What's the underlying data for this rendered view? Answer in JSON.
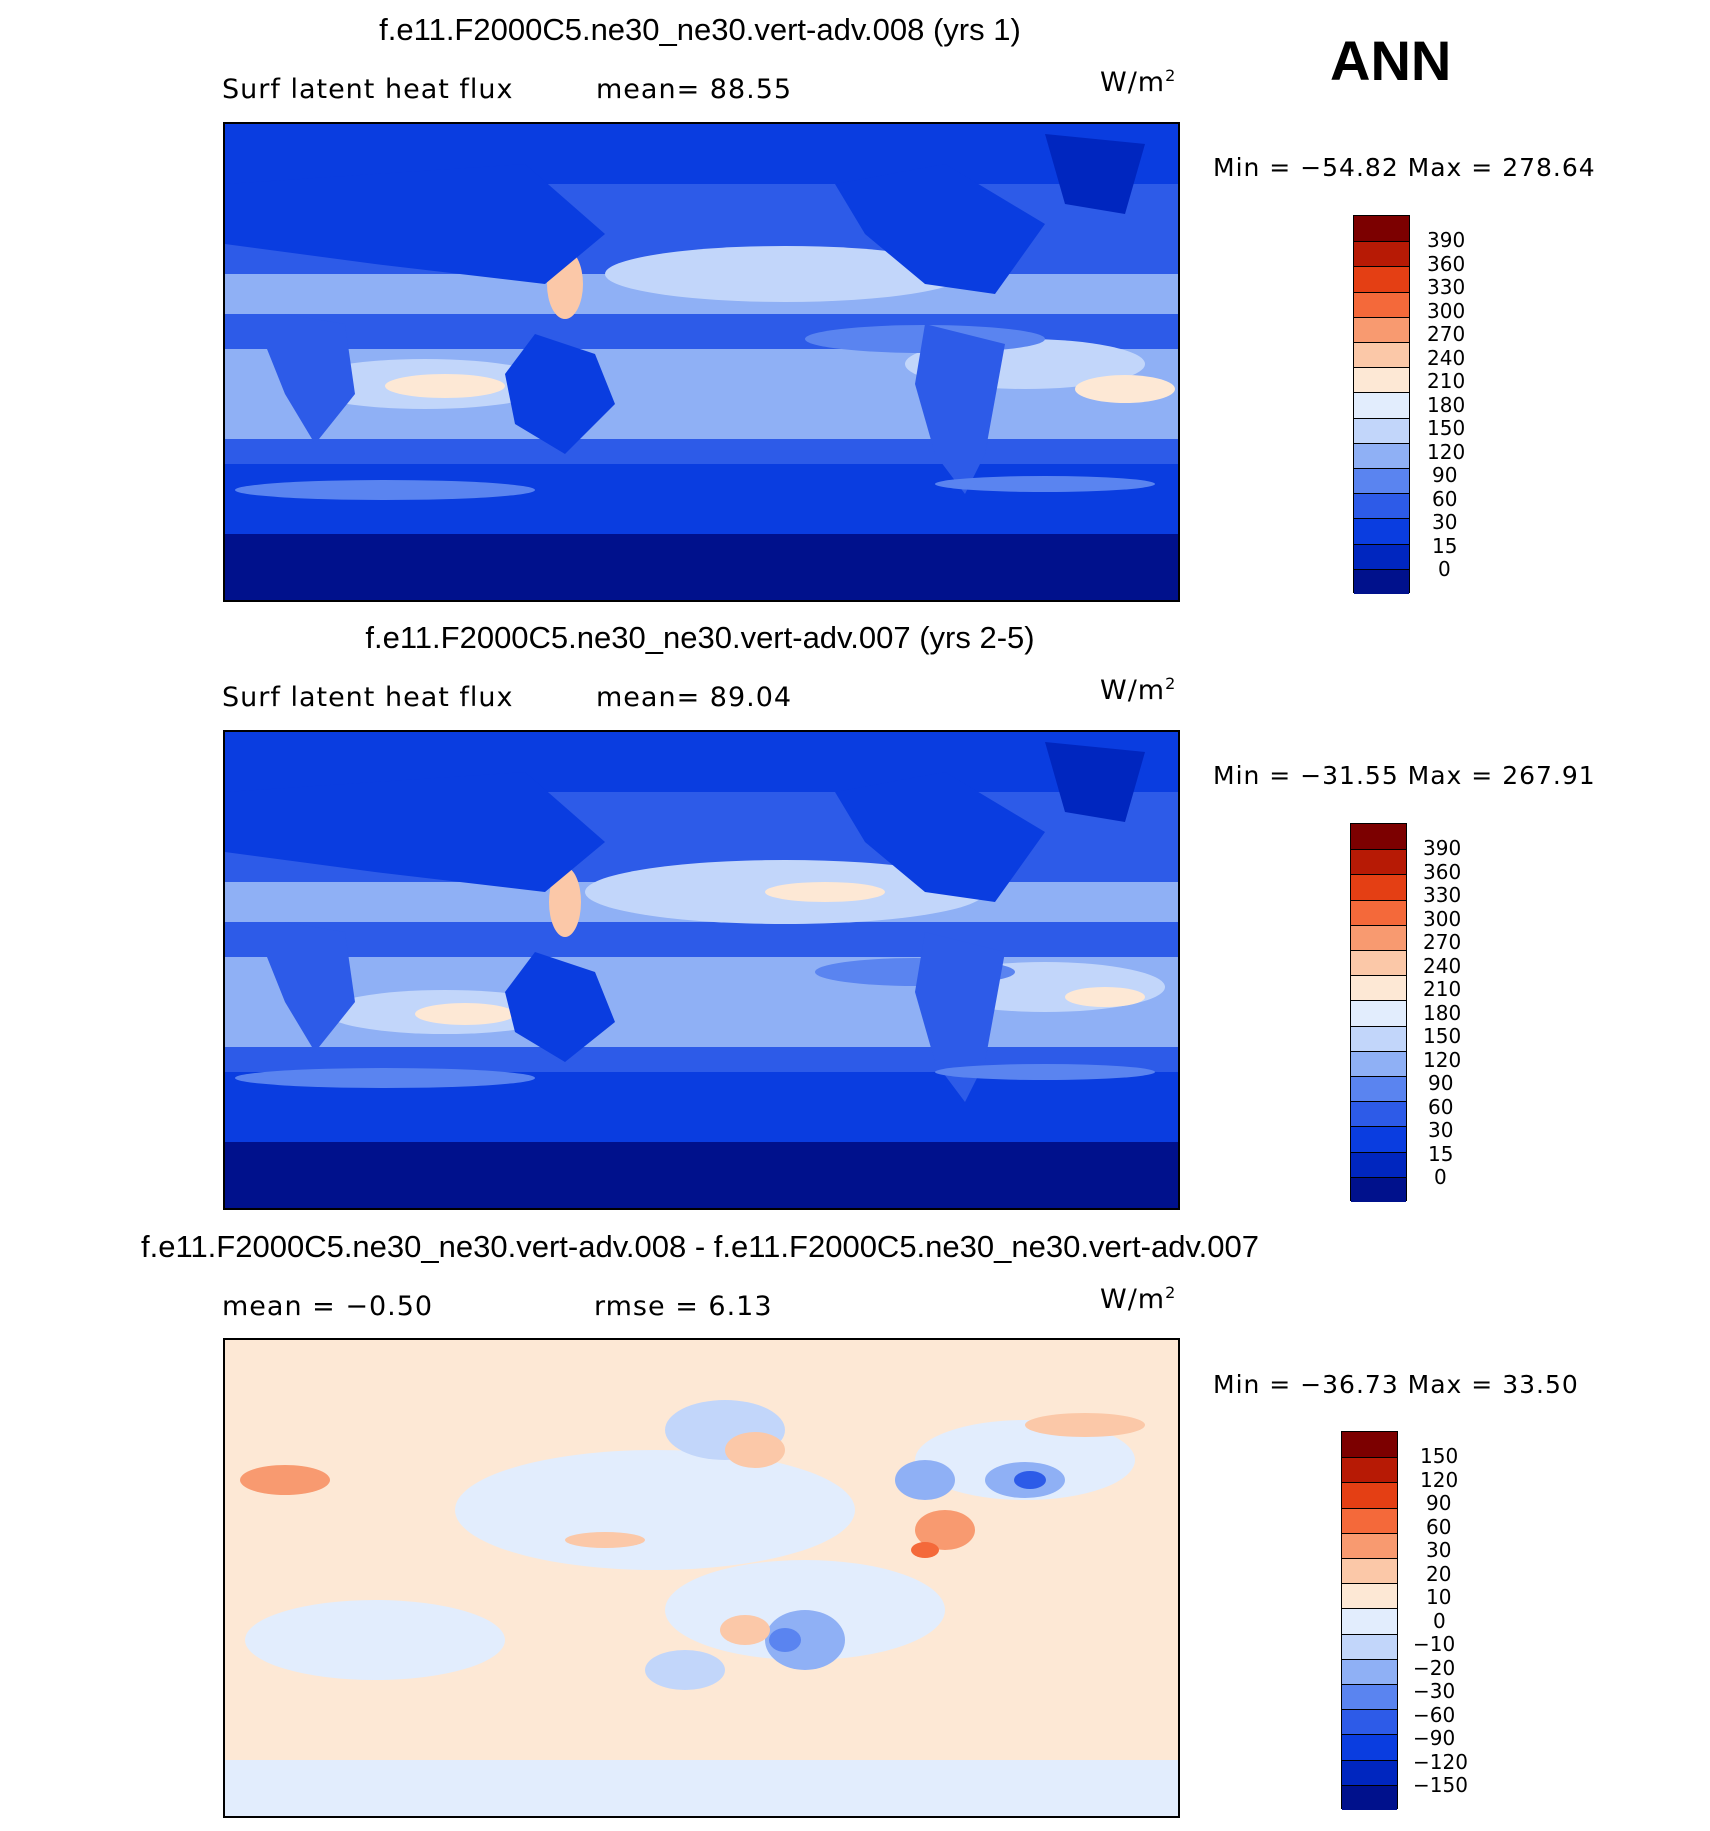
{
  "season": "ANN",
  "colors": {
    "blue_scale": [
      "#00118c",
      "#0026bf",
      "#0a3de0",
      "#2d5be8",
      "#5a84f0",
      "#8fb0f5",
      "#c2d6fa",
      "#e2edfd",
      "#fde8d5",
      "#fbc8a8",
      "#f89a70",
      "#f4693a",
      "#e43f14",
      "#b71a05",
      "#7c0000"
    ],
    "diff_scale": [
      "#00118c",
      "#0026bf",
      "#0a3de0",
      "#2d5be8",
      "#5a84f0",
      "#8fb0f5",
      "#c2d6fa",
      "#e2edfd",
      "#fde8d5",
      "#fbc8a8",
      "#f89a70",
      "#f4693a",
      "#e43f14",
      "#b71a05",
      "#7c0000"
    ]
  },
  "panels": [
    {
      "title": "f.e11.F2000C5.ne30_ne30.vert-adv.008 (yrs 1)",
      "left_label": "Surf latent heat flux",
      "right_label": "mean=   88.55",
      "units": "W/m",
      "units_sup": "2",
      "minmax": "Min = −54.82 Max = 278.64",
      "colorbar_labels": [
        "390",
        "360",
        "330",
        "300",
        "270",
        "240",
        "210",
        "180",
        "150",
        "120",
        "90",
        "60",
        "30",
        "15",
        "0"
      ]
    },
    {
      "title": "f.e11.F2000C5.ne30_ne30.vert-adv.007 (yrs 2-5)",
      "left_label": "Surf latent heat flux",
      "right_label": "mean=   89.04",
      "units": "W/m",
      "units_sup": "2",
      "minmax": "Min = −31.55 Max = 267.91",
      "colorbar_labels": [
        "390",
        "360",
        "330",
        "300",
        "270",
        "240",
        "210",
        "180",
        "150",
        "120",
        "90",
        "60",
        "30",
        "15",
        "0"
      ]
    },
    {
      "title": "f.e11.F2000C5.ne30_ne30.vert-adv.008 - f.e11.F2000C5.ne30_ne30.vert-adv.007",
      "left_label": "mean =   −0.50",
      "right_label": "rmse =    6.13",
      "units": "W/m",
      "units_sup": "2",
      "minmax": "Min = −36.73 Max =   33.50",
      "colorbar_labels": [
        "150",
        "120",
        "90",
        "60",
        "30",
        "20",
        "10",
        "0",
        "−10",
        "−20",
        "−30",
        "−60",
        "−90",
        "−120",
        "−150"
      ]
    }
  ]
}
